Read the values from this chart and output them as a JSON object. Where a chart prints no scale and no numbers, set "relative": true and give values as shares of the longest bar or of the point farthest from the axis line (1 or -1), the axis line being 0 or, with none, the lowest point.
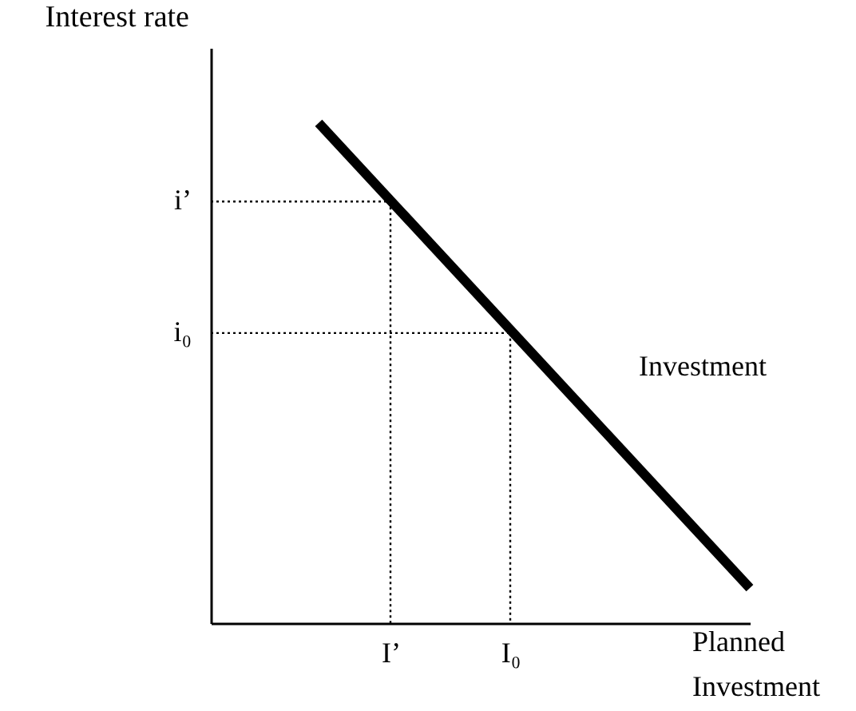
{
  "chart_data": {
    "type": "line",
    "relative": true,
    "xlabel": "Planned Investment",
    "ylabel": "Interest rate",
    "categories": [
      null,
      null,
      null,
      null,
      null,
      null,
      null,
      null,
      null,
      null,
      null,
      null,
      null,
      null,
      null,
      "I’",
      null,
      null,
      null,
      null,
      null,
      null,
      null,
      null,
      null,
      "I₀",
      null,
      null,
      null,
      null,
      null,
      null,
      null,
      null,
      null,
      null,
      null,
      null,
      null,
      null,
      null,
      null,
      null,
      null,
      null,
      null
    ],
    "series": [
      {
        "name": "Investment",
        "color": "#000000",
        "values": [
          null,
          null,
          null,
          null,
          null,
          null,
          null,
          null,
          null,
          1,
          null,
          null,
          null,
          null,
          null,
          null,
          null,
          null,
          null,
          null,
          null,
          null,
          null,
          null,
          null,
          null,
          null,
          null,
          null,
          null,
          null,
          null,
          null,
          null,
          null,
          null,
          null,
          null,
          null,
          null,
          null,
          null,
          null,
          null,
          null,
          0.07
        ]
      },
      {
        "name": "i’",
        "color": "#000000",
        "line_style": "dotted",
        "values": [
          0.843,
          0.843,
          0.843,
          0.843,
          0.843,
          0.843,
          0.843,
          0.843,
          0.843,
          0.843,
          0.843,
          0.843,
          0.843,
          0.843,
          0.843,
          0.843,
          null,
          null,
          null,
          null,
          null,
          null,
          null,
          null,
          null,
          null,
          null,
          null,
          null,
          null,
          null,
          null,
          null,
          null,
          null,
          null,
          null,
          null,
          null,
          null,
          null,
          null,
          null,
          null,
          null,
          null
        ]
      },
      {
        "name": "i₀",
        "color": "#000000",
        "line_style": "dotted",
        "values": [
          0.58,
          0.58,
          0.58,
          0.58,
          0.58,
          0.58,
          0.58,
          0.58,
          0.58,
          0.58,
          0.58,
          0.58,
          0.58,
          0.58,
          0.58,
          0.58,
          0.58,
          0.58,
          0.58,
          0.58,
          0.58,
          0.58,
          0.58,
          0.58,
          0.58,
          0.58,
          null,
          null,
          null,
          null,
          null,
          null,
          null,
          null,
          null,
          null,
          null,
          null,
          null,
          null,
          null,
          null,
          null,
          null,
          null,
          null
        ]
      }
    ]
  }
}
